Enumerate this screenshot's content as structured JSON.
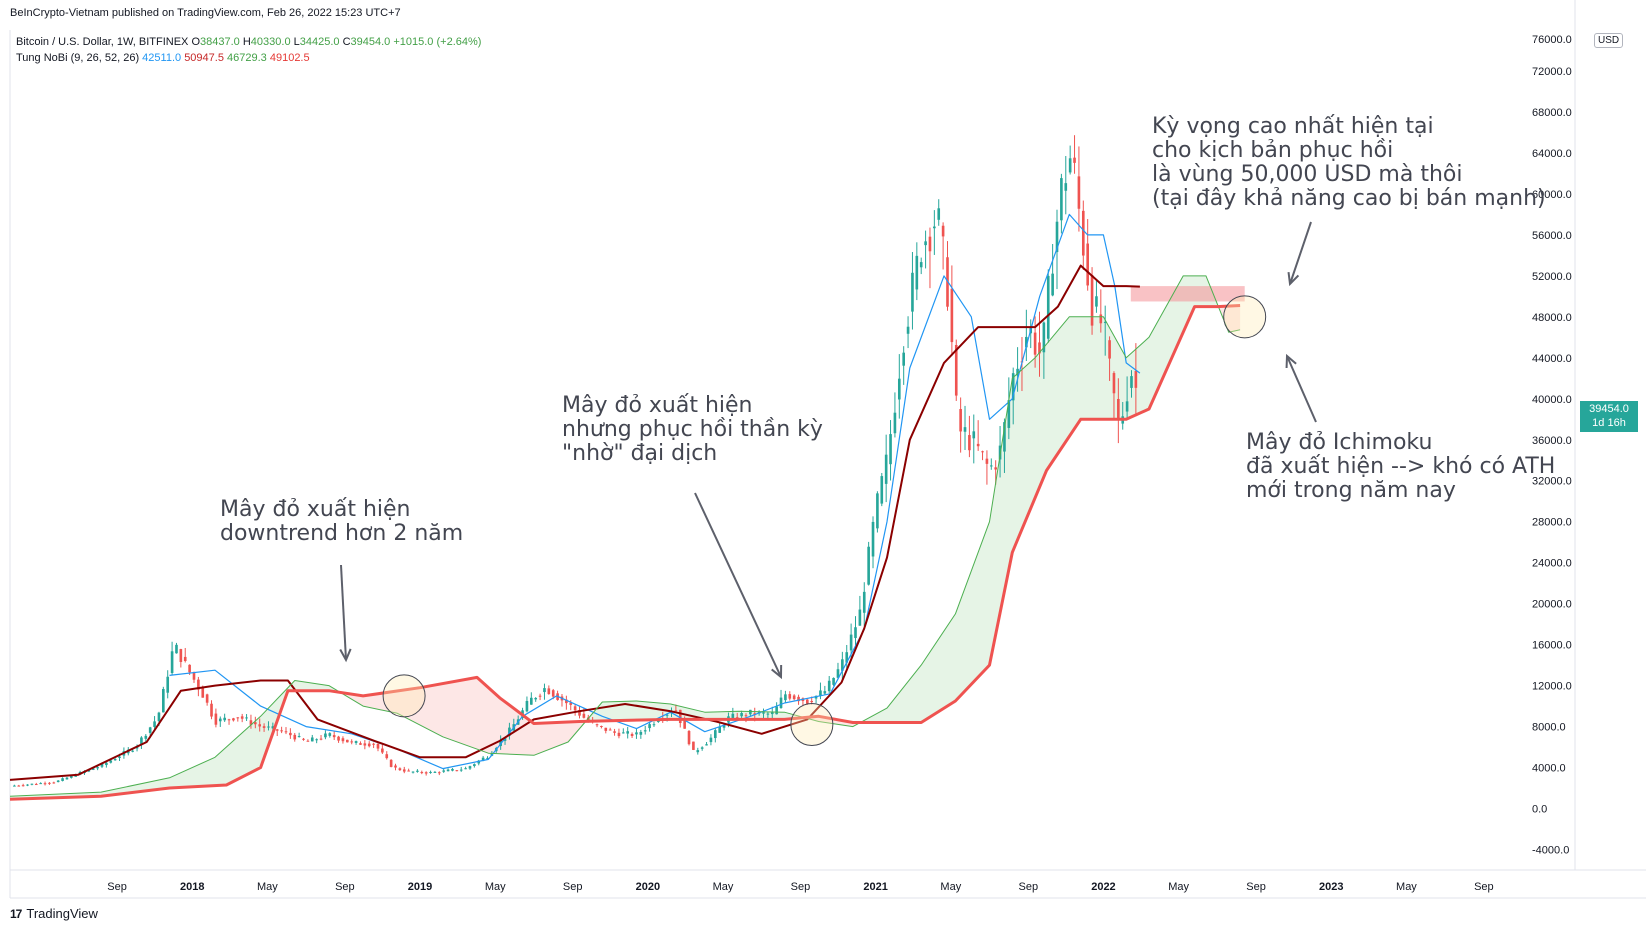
{
  "publisher": "BeInCrypto-Vietnam published on TradingView.com, Feb 26, 2022 15:23 UTC+7",
  "legend": {
    "symbol": "Bitcoin / U.S. Dollar, 1W, BITFINEX",
    "ohlc": [
      {
        "k": "O",
        "v": "38437.0"
      },
      {
        "k": "H",
        "v": "40330.0"
      },
      {
        "k": "L",
        "v": "34425.0"
      },
      {
        "k": "C",
        "v": "39454.0"
      }
    ],
    "change": "+1015.0 (+2.64%)",
    "indicator": "Tung NoBi (9, 26, 52, 26)",
    "ind_values": [
      "42511.0",
      "50947.5",
      "46729.3",
      "49102.5"
    ]
  },
  "price_tag": {
    "price": "39454.0",
    "countdown": "1d 16h"
  },
  "currency": "USD",
  "top_label": "76000.0",
  "footer": "TradingView",
  "colors": {
    "up": "#26a69a",
    "down": "#ef5350",
    "tenkan": "#2196f3",
    "kijun": "#8b0000",
    "spanA": "#4caf50",
    "spanB": "#ef5350"
  },
  "annotations": {
    "a1": "Mây đỏ xuất hiện\ndowntrend hơn 2 năm",
    "a2": "Mây đỏ xuất hiện\nnhưng phục hồi thần kỳ\n\"nhờ\" đại dịch",
    "a3": "Kỳ vọng cao nhất hiện tại\ncho kịch bản phục hồi\nlà vùng 50,000 USD mà thôi\n(tại đây khả năng cao bị bán mạnh)",
    "a4": "Mây đỏ Ichimoku\nđã xuất hiện --> khó có ATH\nmới trong năm nay"
  },
  "chart_data": {
    "type": "candlestick",
    "title": "Bitcoin / U.S. Dollar, 1W, BITFINEX",
    "ylim": [
      -6000,
      76000
    ],
    "y_ticks": [
      72000,
      68000,
      64000,
      60000,
      56000,
      52000,
      48000,
      44000,
      40000,
      36000,
      32000,
      28000,
      24000,
      20000,
      16000,
      12000,
      8000,
      4000,
      0,
      -4000
    ],
    "y_tick_labels": [
      "72000.0",
      "68000.0",
      "64000.0",
      "60000.0",
      "56000.0",
      "52000.0",
      "48000.0",
      "44000.0",
      "40000.0",
      "36000.0",
      "32000.0",
      "28000.0",
      "24000.0",
      "20000.0",
      "16000.0",
      "12000.0",
      "8000.0",
      "4000.0",
      "0.0",
      "-4000.0"
    ],
    "x_ticks": [
      {
        "label": "Sep",
        "t": 2017.67
      },
      {
        "label": "2018",
        "t": 2018.0
      },
      {
        "label": "May",
        "t": 2018.33
      },
      {
        "label": "Sep",
        "t": 2018.67
      },
      {
        "label": "2019",
        "t": 2019.0
      },
      {
        "label": "May",
        "t": 2019.33
      },
      {
        "label": "Sep",
        "t": 2019.67
      },
      {
        "label": "2020",
        "t": 2020.0
      },
      {
        "label": "May",
        "t": 2020.33
      },
      {
        "label": "Sep",
        "t": 2020.67
      },
      {
        "label": "2021",
        "t": 2021.0
      },
      {
        "label": "May",
        "t": 2021.33
      },
      {
        "label": "Sep",
        "t": 2021.67
      },
      {
        "label": "2022",
        "t": 2022.0
      },
      {
        "label": "May",
        "t": 2022.33
      },
      {
        "label": "Sep",
        "t": 2022.67
      },
      {
        "label": "2023",
        "t": 2023.0
      },
      {
        "label": "May",
        "t": 2023.33
      },
      {
        "label": "Sep",
        "t": 2023.67
      }
    ],
    "x_range": [
      2017.2,
      2024.07
    ],
    "price_path": [
      [
        2017.2,
        2200
      ],
      [
        2017.4,
        2600
      ],
      [
        2017.6,
        4200
      ],
      [
        2017.75,
        6000
      ],
      [
        2017.85,
        9000
      ],
      [
        2017.92,
        16000
      ],
      [
        2017.97,
        14000
      ],
      [
        2018.05,
        11000
      ],
      [
        2018.1,
        8500
      ],
      [
        2018.2,
        9000
      ],
      [
        2018.3,
        8000
      ],
      [
        2018.4,
        7500
      ],
      [
        2018.5,
        6500
      ],
      [
        2018.6,
        7200
      ],
      [
        2018.7,
        6400
      ],
      [
        2018.8,
        6300
      ],
      [
        2018.88,
        4000
      ],
      [
        2018.95,
        3600
      ],
      [
        2019.05,
        3500
      ],
      [
        2019.2,
        3900
      ],
      [
        2019.3,
        5200
      ],
      [
        2019.4,
        7800
      ],
      [
        2019.48,
        10500
      ],
      [
        2019.55,
        11800
      ],
      [
        2019.65,
        10200
      ],
      [
        2019.75,
        8300
      ],
      [
        2019.85,
        7400
      ],
      [
        2019.95,
        7200
      ],
      [
        2020.05,
        8900
      ],
      [
        2020.12,
        9800
      ],
      [
        2020.2,
        5500
      ],
      [
        2020.27,
        6700
      ],
      [
        2020.35,
        8800
      ],
      [
        2020.45,
        9300
      ],
      [
        2020.55,
        9200
      ],
      [
        2020.6,
        11200
      ],
      [
        2020.7,
        10500
      ],
      [
        2020.78,
        11500
      ],
      [
        2020.85,
        14000
      ],
      [
        2020.93,
        19000
      ],
      [
        2021.0,
        29000
      ],
      [
        2021.05,
        34000
      ],
      [
        2021.12,
        46000
      ],
      [
        2021.2,
        55000
      ],
      [
        2021.27,
        58000
      ],
      [
        2021.32,
        50000
      ],
      [
        2021.36,
        37000
      ],
      [
        2021.42,
        36000
      ],
      [
        2021.5,
        33000
      ],
      [
        2021.55,
        35000
      ],
      [
        2021.6,
        42000
      ],
      [
        2021.67,
        47000
      ],
      [
        2021.73,
        44000
      ],
      [
        2021.78,
        55000
      ],
      [
        2021.82,
        61000
      ],
      [
        2021.86,
        64000
      ],
      [
        2021.9,
        57000
      ],
      [
        2021.95,
        49000
      ],
      [
        2022.0,
        47000
      ],
      [
        2022.03,
        42000
      ],
      [
        2022.07,
        37000
      ],
      [
        2022.12,
        43000
      ],
      [
        2022.16,
        39454
      ]
    ],
    "series": [
      {
        "name": "Tenkan (9)",
        "color": "#2196f3",
        "points": [
          [
            2017.9,
            13000
          ],
          [
            2018.1,
            13500
          ],
          [
            2018.3,
            10000
          ],
          [
            2018.5,
            8000
          ],
          [
            2018.7,
            7300
          ],
          [
            2018.9,
            5800
          ],
          [
            2019.1,
            3900
          ],
          [
            2019.3,
            4800
          ],
          [
            2019.45,
            9000
          ],
          [
            2019.6,
            11000
          ],
          [
            2019.8,
            9000
          ],
          [
            2019.95,
            7800
          ],
          [
            2020.1,
            9400
          ],
          [
            2020.25,
            7500
          ],
          [
            2020.45,
            9000
          ],
          [
            2020.6,
            10300
          ],
          [
            2020.8,
            11200
          ],
          [
            2020.95,
            17500
          ],
          [
            2021.05,
            28000
          ],
          [
            2021.15,
            43000
          ],
          [
            2021.3,
            52000
          ],
          [
            2021.42,
            48000
          ],
          [
            2021.5,
            38000
          ],
          [
            2021.6,
            40000
          ],
          [
            2021.72,
            50000
          ],
          [
            2021.85,
            58000
          ],
          [
            2021.93,
            56000
          ],
          [
            2022.0,
            56000
          ],
          [
            2022.05,
            51000
          ],
          [
            2022.1,
            43500
          ],
          [
            2022.16,
            42511
          ]
        ]
      },
      {
        "name": "Kijun (26)",
        "color": "#8b0000",
        "points": [
          [
            2017.2,
            2800
          ],
          [
            2017.5,
            3300
          ],
          [
            2017.8,
            6500
          ],
          [
            2017.95,
            11500
          ],
          [
            2018.1,
            12000
          ],
          [
            2018.3,
            12500
          ],
          [
            2018.42,
            12500
          ],
          [
            2018.55,
            8700
          ],
          [
            2018.8,
            6600
          ],
          [
            2019.0,
            5000
          ],
          [
            2019.2,
            5000
          ],
          [
            2019.35,
            6600
          ],
          [
            2019.5,
            8700
          ],
          [
            2019.7,
            9500
          ],
          [
            2019.9,
            10200
          ],
          [
            2020.1,
            9500
          ],
          [
            2020.3,
            8500
          ],
          [
            2020.5,
            7300
          ],
          [
            2020.7,
            8700
          ],
          [
            2020.85,
            12300
          ],
          [
            2020.95,
            17600
          ],
          [
            2021.05,
            24500
          ],
          [
            2021.15,
            36000
          ],
          [
            2021.3,
            43500
          ],
          [
            2021.45,
            47000
          ],
          [
            2021.6,
            47000
          ],
          [
            2021.7,
            47000
          ],
          [
            2021.8,
            49000
          ],
          [
            2021.9,
            53000
          ],
          [
            2022.0,
            51000
          ],
          [
            2022.1,
            51000
          ],
          [
            2022.16,
            50947
          ]
        ]
      },
      {
        "name": "Senkou A",
        "color": "#4caf50",
        "points": [
          [
            2017.2,
            1200
          ],
          [
            2017.6,
            1600
          ],
          [
            2017.9,
            3000
          ],
          [
            2018.1,
            5000
          ],
          [
            2018.3,
            9000
          ],
          [
            2018.45,
            12500
          ],
          [
            2018.6,
            12000
          ],
          [
            2018.75,
            10000
          ],
          [
            2018.9,
            9300
          ],
          [
            2019.1,
            7000
          ],
          [
            2019.3,
            5400
          ],
          [
            2019.5,
            5200
          ],
          [
            2019.65,
            6500
          ],
          [
            2019.8,
            10400
          ],
          [
            2019.95,
            10500
          ],
          [
            2020.1,
            10200
          ],
          [
            2020.25,
            9400
          ],
          [
            2020.4,
            9500
          ],
          [
            2020.6,
            9400
          ],
          [
            2020.75,
            8500
          ],
          [
            2020.9,
            8000
          ],
          [
            2021.05,
            9800
          ],
          [
            2021.2,
            14000
          ],
          [
            2021.35,
            19000
          ],
          [
            2021.5,
            28000
          ],
          [
            2021.6,
            42000
          ],
          [
            2021.7,
            44000
          ],
          [
            2021.85,
            48000
          ],
          [
            2022.0,
            48000
          ],
          [
            2022.1,
            44000
          ],
          [
            2022.2,
            46000
          ],
          [
            2022.35,
            52000
          ],
          [
            2022.45,
            52000
          ],
          [
            2022.55,
            46500
          ],
          [
            2022.6,
            46729
          ]
        ]
      },
      {
        "name": "Senkou B",
        "color": "#ef5350",
        "points": [
          [
            2017.2,
            900
          ],
          [
            2017.6,
            1200
          ],
          [
            2017.9,
            2000
          ],
          [
            2018.15,
            2300
          ],
          [
            2018.3,
            4000
          ],
          [
            2018.42,
            11500
          ],
          [
            2018.6,
            11500
          ],
          [
            2018.75,
            11000
          ],
          [
            2019.0,
            11800
          ],
          [
            2019.25,
            12800
          ],
          [
            2019.35,
            10800
          ],
          [
            2019.5,
            8300
          ],
          [
            2019.7,
            8500
          ],
          [
            2019.9,
            8600
          ],
          [
            2020.1,
            8700
          ],
          [
            2020.4,
            8700
          ],
          [
            2020.6,
            8700
          ],
          [
            2020.75,
            9000
          ],
          [
            2020.9,
            8400
          ],
          [
            2021.2,
            8400
          ],
          [
            2021.35,
            10500
          ],
          [
            2021.5,
            14000
          ],
          [
            2021.6,
            25000
          ],
          [
            2021.75,
            33000
          ],
          [
            2021.9,
            38000
          ],
          [
            2022.1,
            38000
          ],
          [
            2022.2,
            39000
          ],
          [
            2022.3,
            44000
          ],
          [
            2022.4,
            49000
          ],
          [
            2022.5,
            49000
          ],
          [
            2022.6,
            49102
          ]
        ]
      }
    ],
    "resistance_zone": [
      49500,
      51000
    ],
    "resistance_t": [
      2022.12,
      2022.62
    ]
  }
}
